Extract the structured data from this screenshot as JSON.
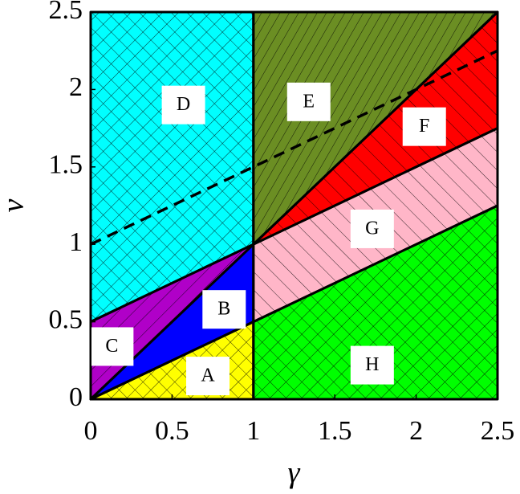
{
  "chart_data": {
    "type": "region",
    "x_label": "γ",
    "y_label": "ν",
    "xlim": [
      0,
      2.5
    ],
    "ylim": [
      0,
      2.5
    ],
    "xticks": [
      0,
      0.5,
      1,
      1.5,
      2,
      2.5
    ],
    "yticks": [
      0,
      0.5,
      1,
      1.5,
      2,
      2.5
    ],
    "regions": [
      {
        "name": "D",
        "color": "#00ffff",
        "pattern": "crosshatch",
        "x": [
          0,
          1,
          1,
          0
        ],
        "y": [
          0.5,
          1,
          2.5,
          2.5
        ],
        "label_x": 0.57,
        "label_y": 1.9
      },
      {
        "name": "C",
        "color": "#b000c8",
        "pattern": "forward",
        "x": [
          0,
          1,
          0
        ],
        "y": [
          0,
          1,
          0.5
        ],
        "label_x": 0.13,
        "label_y": 0.34
      },
      {
        "name": "B",
        "color": "#0000ff",
        "pattern": "none",
        "x": [
          0,
          1,
          1
        ],
        "y": [
          0,
          1,
          0.5
        ],
        "label_x": 0.82,
        "label_y": 0.58
      },
      {
        "name": "A",
        "color": "#ffff00",
        "pattern": "crosshatch",
        "x": [
          0,
          1,
          1
        ],
        "y": [
          0,
          0.5,
          0
        ],
        "label_x": 0.72,
        "label_y": 0.15
      },
      {
        "name": "E",
        "color": "#6b8e23",
        "pattern": "steep",
        "x": [
          1,
          1,
          2.5
        ],
        "y": [
          1,
          2.5,
          2.5
        ],
        "label_x": 1.34,
        "label_y": 1.92
      },
      {
        "name": "F",
        "color": "#ff0000",
        "pattern": "back",
        "x": [
          1,
          2.5,
          2.5
        ],
        "y": [
          1,
          2.5,
          1.75
        ],
        "label_x": 2.05,
        "label_y": 1.76
      },
      {
        "name": "G",
        "color": "#ffb6c8",
        "pattern": "back",
        "x": [
          1,
          2.5,
          2.5,
          1
        ],
        "y": [
          1,
          1.75,
          1.25,
          0.5
        ],
        "label_x": 1.73,
        "label_y": 1.1
      },
      {
        "name": "H",
        "color": "#00ff00",
        "pattern": "crosshatch",
        "x": [
          1,
          1,
          2.5,
          2.5
        ],
        "y": [
          0,
          0.5,
          1.25,
          0
        ],
        "label_x": 1.73,
        "label_y": 0.22
      }
    ],
    "dashed_line": {
      "x": [
        0,
        2.5
      ],
      "y": [
        1,
        2.25
      ],
      "color": "#000000"
    }
  }
}
